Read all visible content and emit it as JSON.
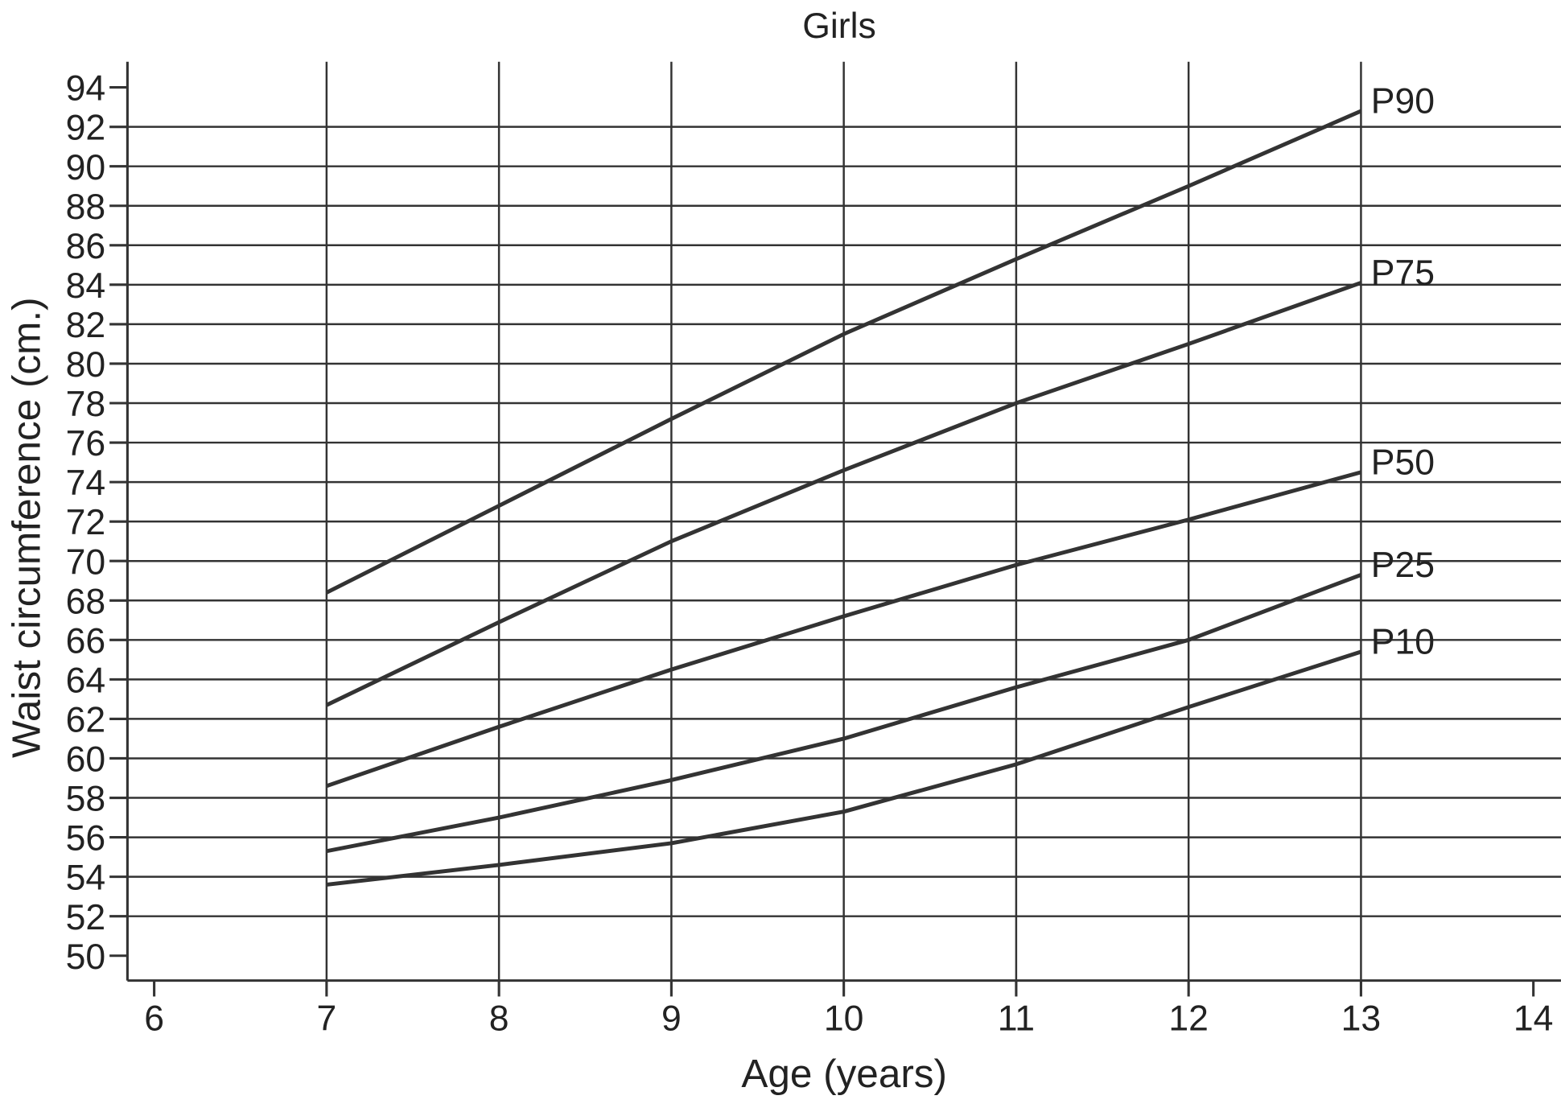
{
  "chart_data": {
    "type": "line",
    "title": "Girls",
    "xlabel": "Age (years)",
    "ylabel": "Waist circumference (cm.)",
    "x": [
      7,
      8,
      9,
      10,
      11,
      12,
      13
    ],
    "series": [
      {
        "name": "P90",
        "color": "#333333",
        "values": [
          68.4,
          72.8,
          77.2,
          81.5,
          85.3,
          89.0,
          92.8
        ]
      },
      {
        "name": "P75",
        "color": "#333333",
        "values": [
          62.7,
          66.9,
          71.0,
          74.6,
          78.0,
          81.0,
          84.1
        ]
      },
      {
        "name": "P50",
        "color": "#333333",
        "values": [
          58.6,
          61.6,
          64.5,
          67.2,
          69.8,
          72.1,
          74.5
        ]
      },
      {
        "name": "P25",
        "color": "#333333",
        "values": [
          55.3,
          57.0,
          58.9,
          61.0,
          63.6,
          66.0,
          69.3
        ]
      },
      {
        "name": "P10",
        "color": "#333333",
        "values": [
          53.6,
          54.6,
          55.7,
          57.3,
          59.7,
          62.6,
          65.4
        ]
      }
    ],
    "xlim": [
      5.845,
      14.16
    ],
    "xticks": [
      6,
      7,
      8,
      9,
      10,
      11,
      12,
      13,
      14
    ],
    "ylim": [
      48.74,
      95.3
    ],
    "yticks": [
      50,
      52,
      54,
      56,
      58,
      60,
      62,
      64,
      66,
      68,
      70,
      72,
      74,
      76,
      78,
      80,
      82,
      84,
      86,
      88,
      90,
      92,
      94
    ],
    "grid": true
  }
}
